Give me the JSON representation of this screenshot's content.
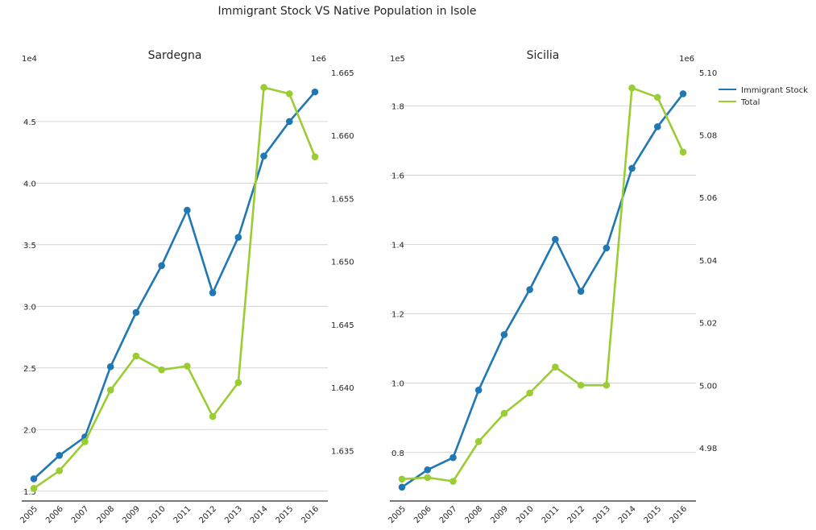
{
  "figure": {
    "title": "Immigrant Stock VS Native Population in Isole"
  },
  "colors": {
    "immigrant": "#1f77b4",
    "total": "#9acd32",
    "grid": "#cccccc",
    "text": "#262626"
  },
  "legend": {
    "placement": "top-right outside",
    "entries": [
      "Immigrant Stock",
      "Total"
    ]
  },
  "chart_data": [
    {
      "type": "line",
      "title": "Sardegna",
      "categories": [
        "2005",
        "2006",
        "2007",
        "2008",
        "2009",
        "2010",
        "2011",
        "2012",
        "2013",
        "2014",
        "2015",
        "2016"
      ],
      "left_axis": {
        "scale_label": "1e4",
        "ylim": [
          1.42,
          4.95
        ],
        "ticks": [
          1.5,
          2.0,
          2.5,
          3.0,
          3.5,
          4.0,
          4.5
        ],
        "tick_labels": [
          "1.5",
          "2.0",
          "2.5",
          "3.0",
          "3.5",
          "4.0",
          "4.5"
        ],
        "grid": true
      },
      "right_axis": {
        "scale_label": "1e6",
        "ylim": [
          1.631,
          1.6655
        ],
        "ticks": [
          1.635,
          1.64,
          1.645,
          1.65,
          1.655,
          1.66,
          1.665
        ],
        "tick_labels": [
          "1.635",
          "1.640",
          "1.645",
          "1.650",
          "1.655",
          "1.660",
          "1.665"
        ]
      },
      "series": [
        {
          "name": "Immigrant Stock",
          "axis": "left",
          "values": [
            1.6,
            1.79,
            1.94,
            2.51,
            2.95,
            3.33,
            3.78,
            3.11,
            3.56,
            4.22,
            4.5,
            4.74
          ]
        },
        {
          "name": "Total",
          "axis": "right",
          "values": [
            1.632,
            1.6334,
            1.6357,
            1.6398,
            1.6425,
            1.6414,
            1.6417,
            1.6377,
            1.6404,
            1.6638,
            1.6633,
            1.6583
          ]
        }
      ]
    },
    {
      "type": "line",
      "title": "Sicilia",
      "categories": [
        "2005",
        "2006",
        "2007",
        "2008",
        "2009",
        "2010",
        "2011",
        "2012",
        "2013",
        "2014",
        "2015",
        "2016"
      ],
      "left_axis": {
        "scale_label": "1e5",
        "ylim": [
          0.66,
          1.915
        ],
        "ticks": [
          0.8,
          1.0,
          1.2,
          1.4,
          1.6,
          1.8
        ],
        "tick_labels": [
          "0.8",
          "1.0",
          "1.2",
          "1.4",
          "1.6",
          "1.8"
        ],
        "grid": true
      },
      "right_axis": {
        "scale_label": "1e6",
        "ylim": [
          4.963,
          5.102
        ],
        "ticks": [
          4.98,
          5.0,
          5.02,
          5.04,
          5.06,
          5.08,
          5.1
        ],
        "tick_labels": [
          "4.98",
          "5.00",
          "5.02",
          "5.04",
          "5.06",
          "5.08",
          "5.10"
        ]
      },
      "series": [
        {
          "name": "Immigrant Stock",
          "axis": "left",
          "values": [
            0.7,
            0.75,
            0.785,
            0.98,
            1.14,
            1.27,
            1.415,
            1.265,
            1.39,
            1.62,
            1.74,
            1.835
          ]
        },
        {
          "name": "Total",
          "axis": "right",
          "values": [
            4.97,
            4.9705,
            4.9693,
            4.982,
            4.991,
            4.9975,
            5.0058,
            5.0,
            5.0,
            5.095,
            5.092,
            5.0745
          ]
        }
      ]
    }
  ]
}
